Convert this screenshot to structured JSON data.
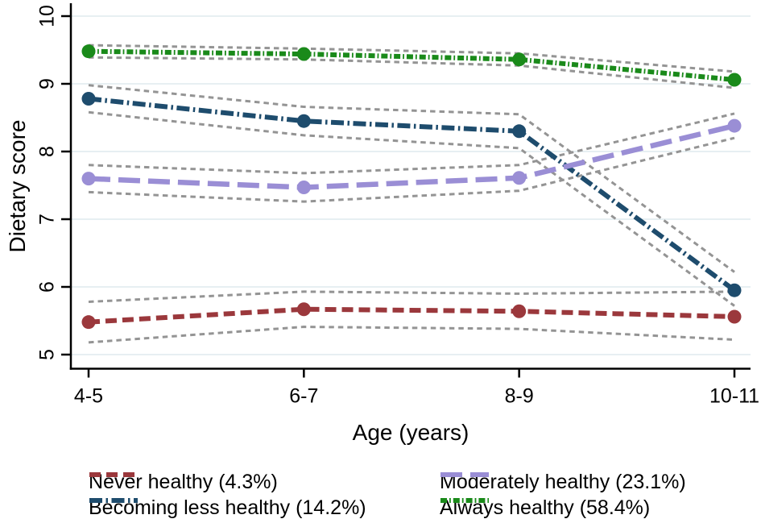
{
  "chart_data": {
    "type": "line",
    "title": "",
    "xlabel": "Age (years)",
    "ylabel": "Dietary score",
    "categories": [
      "4-5",
      "6-7",
      "8-9",
      "10-11"
    ],
    "yticks": [
      5,
      6,
      7,
      8,
      9,
      10
    ],
    "ylim": [
      4.75,
      10.2
    ],
    "grid": "horizontal-only",
    "gridline_color": "#dfeaee",
    "axis_color": "#000000",
    "ci_band_color": "#949494",
    "legend_position": "bottom-two-columns",
    "series": [
      {
        "name": "Never healthy (4.3%)",
        "color": "#9b383c",
        "dash": "dash",
        "values": [
          5.48,
          5.67,
          5.64,
          5.56
        ],
        "ci_upper": [
          5.78,
          5.93,
          5.9,
          5.93
        ],
        "ci_lower": [
          5.18,
          5.41,
          5.38,
          5.22
        ]
      },
      {
        "name": "Becoming less healthy (14.2%)",
        "color": "#1e4c6d",
        "dash": "dash-dot",
        "values": [
          8.78,
          8.45,
          8.3,
          5.95
        ],
        "ci_upper": [
          8.98,
          8.66,
          8.55,
          6.22
        ],
        "ci_lower": [
          8.58,
          8.24,
          8.05,
          5.72
        ]
      },
      {
        "name": "Moderately healthy (23.1%)",
        "color": "#9a8ed5",
        "dash": "long-dash",
        "values": [
          7.6,
          7.47,
          7.61,
          8.38
        ],
        "ci_upper": [
          7.8,
          7.68,
          7.8,
          8.56
        ],
        "ci_lower": [
          7.4,
          7.26,
          7.42,
          8.2
        ]
      },
      {
        "name": "Always healthy (58.4%)",
        "color": "#1a8a1a",
        "dash": "square-dot",
        "values": [
          9.48,
          9.44,
          9.36,
          9.06
        ],
        "ci_upper": [
          9.57,
          9.52,
          9.45,
          9.18
        ],
        "ci_lower": [
          9.39,
          9.36,
          9.27,
          8.94
        ]
      }
    ]
  },
  "legend": {
    "column_series_indices": [
      [
        0,
        1
      ],
      [
        2,
        3
      ]
    ]
  }
}
